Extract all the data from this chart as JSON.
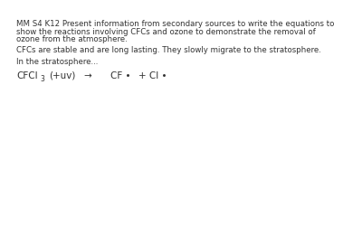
{
  "background_color": "#ffffff",
  "line1": "MM S4 K12 Present information from secondary sources to write the equations to",
  "line2": "show the reactions involving CFCs and ozone to demonstrate the removal of",
  "line3": "ozone from the atmosphere.",
  "para1": "CFCs are stable and are long lasting. They slowly migrate to the stratosphere.",
  "para2": "In the stratosphere...",
  "text_color": "#333333",
  "body_fontsize": 6.2,
  "eq_fontsize": 7.5,
  "eq_sub_fontsize": 5.5
}
